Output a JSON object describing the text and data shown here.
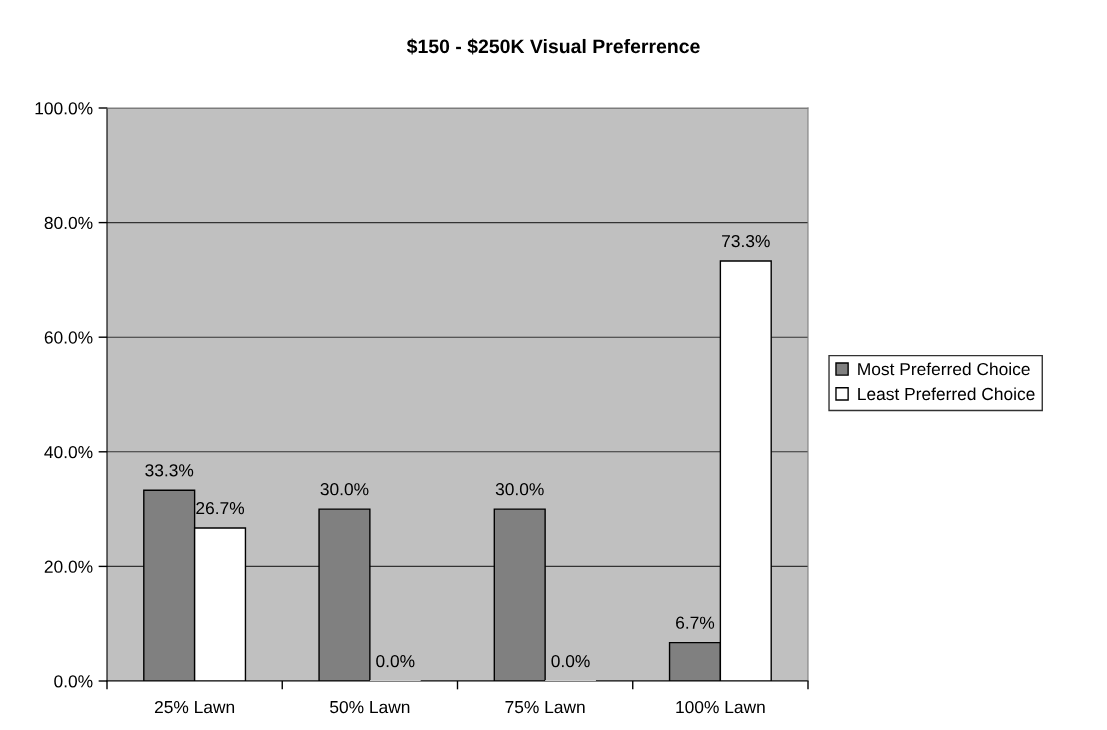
{
  "chart_data": {
    "type": "bar",
    "title": "$150 - $250K Visual Preferrence",
    "categories": [
      "25% Lawn",
      "50% Lawn",
      "75% Lawn",
      "100% Lawn"
    ],
    "series": [
      {
        "name": "Most Preferred Choice",
        "color": "#808080",
        "values": [
          33.3,
          30.0,
          30.0,
          6.7
        ],
        "value_labels": [
          "33.3%",
          "30.0%",
          "30.0%",
          "6.7%"
        ]
      },
      {
        "name": "Least Preferred Choice",
        "color": "#ffffff",
        "values": [
          26.7,
          0.0,
          0.0,
          73.3
        ],
        "value_labels": [
          "26.7%",
          "0.0%",
          "0.0%",
          "73.3%"
        ]
      }
    ],
    "ylim": [
      0,
      100
    ],
    "yticks": [
      {
        "value": 0,
        "label": "0.0%"
      },
      {
        "value": 20,
        "label": "20.0%"
      },
      {
        "value": 40,
        "label": "40.0%"
      },
      {
        "value": 60,
        "label": "60.0%"
      },
      {
        "value": 80,
        "label": "80.0%"
      },
      {
        "value": 100,
        "label": "100.0%"
      }
    ],
    "grid": "y",
    "legend": "right"
  }
}
